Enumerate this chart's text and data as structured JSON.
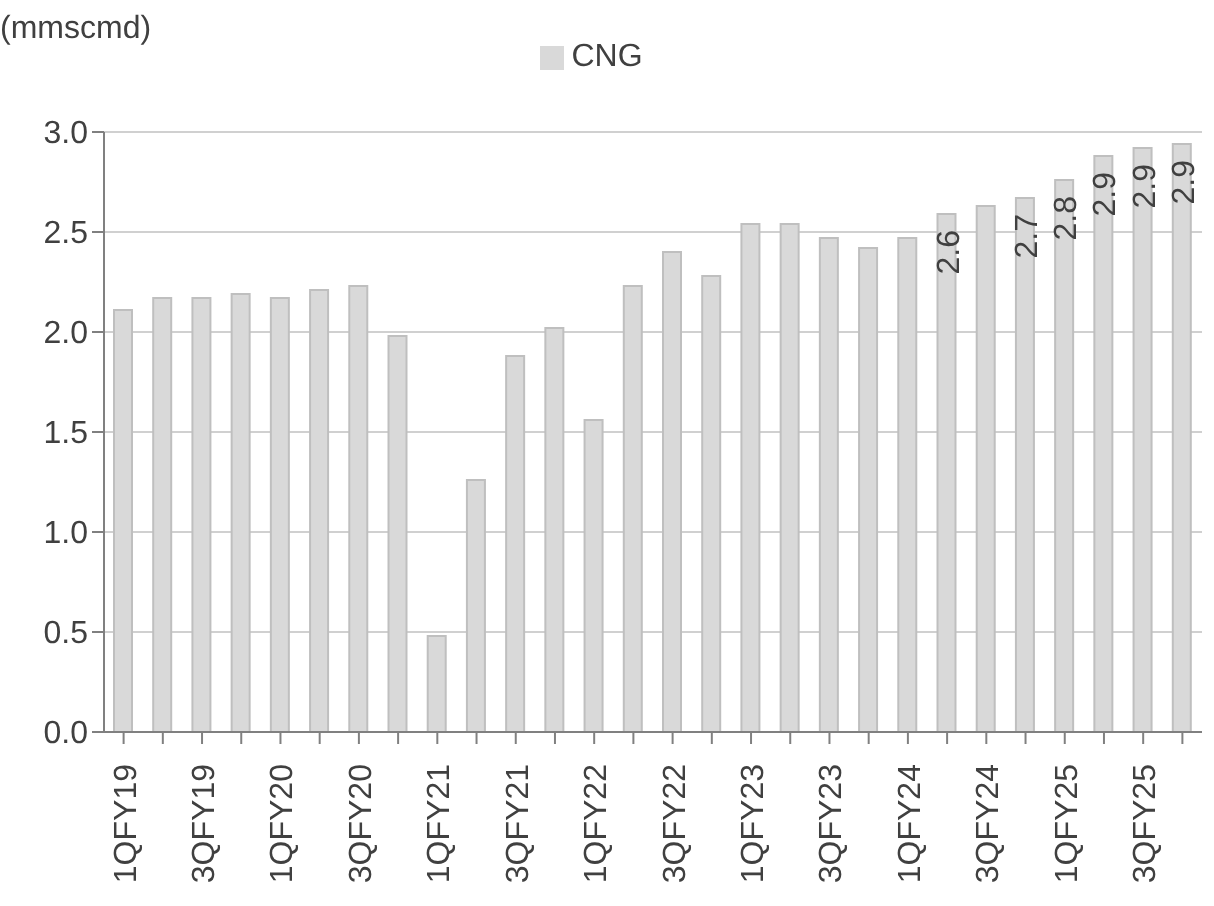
{
  "chart_data": {
    "type": "bar",
    "ylabel": "(mmscmd)",
    "categories": [
      "1QFY19",
      null,
      "3QFY19",
      null,
      "1QFY20",
      null,
      "3QFY20",
      null,
      "1QFY21",
      null,
      "3QFY21",
      null,
      "1QFY22",
      null,
      "3QFY22",
      null,
      "1QFY23",
      null,
      "3QFY23",
      null,
      "1QFY24",
      null,
      "3QFY24",
      null,
      "1QFY25",
      null,
      "3QFY25",
      null
    ],
    "series": [
      {
        "name": "CNG",
        "color": "#d9d9d9",
        "values": [
          2.11,
          2.17,
          2.17,
          2.19,
          2.17,
          2.21,
          2.23,
          1.98,
          0.48,
          1.26,
          1.88,
          2.02,
          1.56,
          2.23,
          2.4,
          2.28,
          2.54,
          2.54,
          2.47,
          2.42,
          2.47,
          2.59,
          2.63,
          2.67,
          2.76,
          2.88,
          2.92,
          2.94
        ],
        "value_labels": [
          null,
          null,
          null,
          null,
          null,
          null,
          null,
          null,
          null,
          null,
          null,
          null,
          null,
          null,
          null,
          null,
          null,
          null,
          null,
          null,
          null,
          "2.6",
          null,
          "2.7",
          "2.8",
          "2.9",
          "2.9",
          "2.9"
        ]
      }
    ],
    "ylim": [
      0,
      3
    ],
    "yticks": [
      {
        "value": 0,
        "label": "0.0"
      },
      {
        "value": 0.5,
        "label": "0.5"
      },
      {
        "value": 1,
        "label": "1.0"
      },
      {
        "value": 1.5,
        "label": "1.5"
      },
      {
        "value": 2,
        "label": "2.0"
      },
      {
        "value": 2.5,
        "label": "2.5"
      },
      {
        "value": 3,
        "label": "3.0"
      }
    ],
    "grid": "y",
    "legend": "top"
  }
}
